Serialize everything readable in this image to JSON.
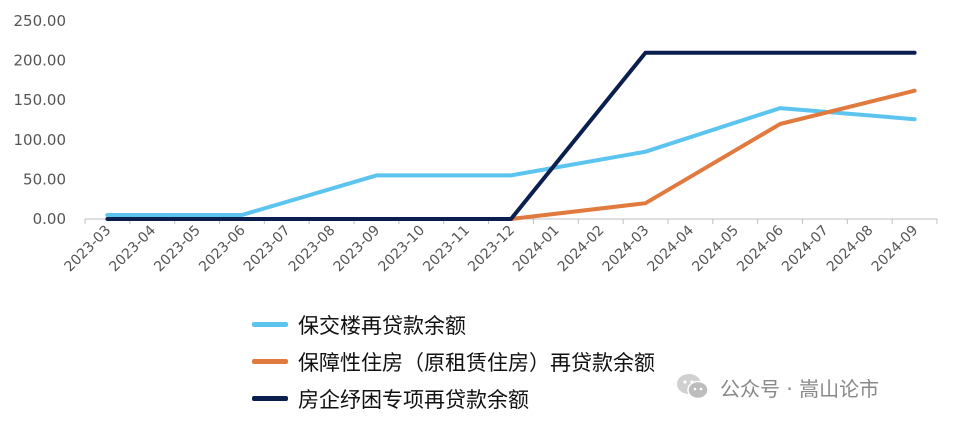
{
  "chart_data": {
    "type": "line",
    "title": "",
    "xlabel": "",
    "ylabel": "",
    "ylim": [
      0,
      250
    ],
    "y_ticks": [
      "0.00",
      "50.00",
      "100.00",
      "150.00",
      "200.00",
      "250.00"
    ],
    "categories": [
      "2023-03",
      "2023-04",
      "2023-05",
      "2023-06",
      "2023-07",
      "2023-08",
      "2023-09",
      "2023-10",
      "2023-11",
      "2023-12",
      "2024-01",
      "2024-02",
      "2024-03",
      "2024-04",
      "2024-05",
      "2024-06",
      "2024-07",
      "2024-08",
      "2024-09"
    ],
    "grid": false,
    "legend_position": "bottom",
    "series": [
      {
        "name": "保交楼再贷款余额",
        "color": "#5bc4ef",
        "points": [
          [
            "2023-03",
            5
          ],
          [
            "2023-06",
            5
          ],
          [
            "2023-09",
            55
          ],
          [
            "2023-12",
            55
          ],
          [
            "2024-03",
            85
          ],
          [
            "2024-06",
            140
          ],
          [
            "2024-09",
            126
          ]
        ]
      },
      {
        "name": "保障性住房（原租赁住房）再贷款余额",
        "color": "#e07a3f",
        "points": [
          [
            "2023-12",
            0
          ],
          [
            "2024-03",
            20
          ],
          [
            "2024-06",
            120
          ],
          [
            "2024-09",
            162
          ]
        ]
      },
      {
        "name": "房企纾困专项再贷款余额",
        "color": "#0b1f4f",
        "points": [
          [
            "2023-03",
            0
          ],
          [
            "2023-06",
            0
          ],
          [
            "2023-09",
            0
          ],
          [
            "2023-12",
            0
          ],
          [
            "2024-03",
            210
          ],
          [
            "2024-06",
            210
          ],
          [
            "2024-09",
            210
          ]
        ]
      }
    ]
  },
  "watermark": {
    "text": "公众号 · 嵩山论市",
    "icon": "wechat-icon"
  }
}
